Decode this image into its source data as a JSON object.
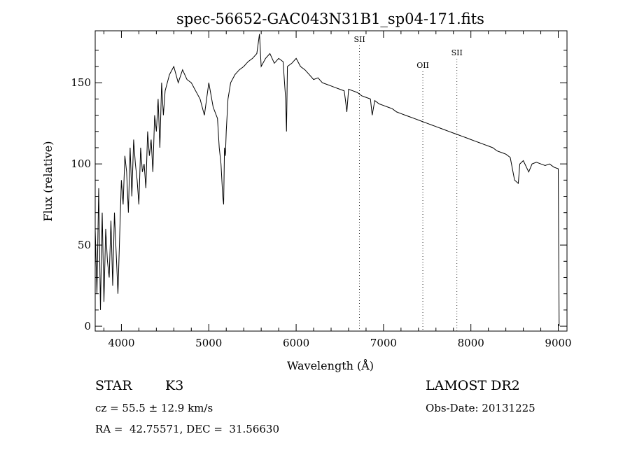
{
  "chart_data": {
    "type": "line",
    "title": "spec-56652-GAC043N31B1_sp04-171.fits",
    "xlabel": "Wavelength (Å)",
    "ylabel": "Flux (relative)",
    "xlim": [
      3700,
      9100
    ],
    "ylim": [
      -3,
      182
    ],
    "xticks": [
      4000,
      5000,
      6000,
      7000,
      8000,
      9000
    ],
    "yticks": [
      0,
      50,
      100,
      150
    ],
    "series": [
      {
        "x": [
          3700,
          3720,
          3740,
          3760,
          3780,
          3800,
          3820,
          3840,
          3860,
          3880,
          3900,
          3920,
          3940,
          3960,
          3980,
          4000,
          4020,
          4040,
          4060,
          4080,
          4100,
          4120,
          4140,
          4160,
          4180,
          4200,
          4220,
          4240,
          4260,
          4280,
          4300,
          4320,
          4340,
          4360,
          4380,
          4400,
          4420,
          4440,
          4460,
          4480,
          4500,
          4550,
          4600,
          4650,
          4700,
          4750,
          4800,
          4850,
          4900,
          4950,
          5000,
          5050,
          5100,
          5120,
          5140,
          5160,
          5170,
          5180,
          5190,
          5200,
          5220,
          5250,
          5300,
          5350,
          5400,
          5450,
          5500,
          5550,
          5580,
          5600,
          5650,
          5700,
          5750,
          5800,
          5850,
          5880,
          5890,
          5900,
          5950,
          6000,
          6050,
          6100,
          6150,
          6200,
          6250,
          6300,
          6350,
          6400,
          6450,
          6500,
          6550,
          6563,
          6580,
          6600,
          6650,
          6700,
          6750,
          6800,
          6850,
          6870,
          6900,
          6950,
          7000,
          7050,
          7100,
          7150,
          7200,
          7250,
          7300,
          7350,
          7400,
          7450,
          7500,
          7550,
          7600,
          7650,
          7700,
          7750,
          7800,
          7850,
          7900,
          7950,
          8000,
          8050,
          8100,
          8150,
          8200,
          8250,
          8300,
          8350,
          8400,
          8450,
          8500,
          8542,
          8560,
          8600,
          8662,
          8700,
          8750,
          8800,
          8850,
          8900,
          8950,
          9000,
          9005,
          9010
        ],
        "y": [
          60,
          20,
          85,
          10,
          70,
          15,
          60,
          40,
          30,
          65,
          25,
          70,
          45,
          20,
          55,
          90,
          75,
          105,
          95,
          70,
          110,
          80,
          115,
          100,
          90,
          75,
          110,
          95,
          100,
          85,
          120,
          105,
          115,
          95,
          130,
          120,
          140,
          110,
          150,
          130,
          145,
          155,
          160,
          150,
          158,
          152,
          150,
          145,
          140,
          130,
          150,
          135,
          128,
          110,
          100,
          80,
          75,
          110,
          105,
          120,
          140,
          150,
          155,
          158,
          160,
          163,
          165,
          168,
          180,
          160,
          165,
          168,
          162,
          165,
          163,
          140,
          120,
          160,
          162,
          165,
          160,
          158,
          155,
          152,
          153,
          150,
          149,
          148,
          147,
          146,
          145,
          140,
          132,
          146,
          145,
          144,
          142,
          141,
          140,
          130,
          139,
          137,
          136,
          135,
          134,
          132,
          131,
          130,
          129,
          128,
          127,
          126,
          125,
          124,
          123,
          122,
          121,
          120,
          119,
          118,
          117,
          116,
          115,
          114,
          113,
          112,
          111,
          110,
          108,
          107,
          106,
          104,
          90,
          88,
          100,
          102,
          95,
          100,
          101,
          100,
          99,
          100,
          98,
          97,
          50,
          0
        ],
        "stroke": "#000000"
      }
    ],
    "spectral_lines": [
      {
        "label": "SII",
        "x": 6725
      },
      {
        "label": "OII",
        "x": 7450
      },
      {
        "label": "SII",
        "x": 7840
      }
    ],
    "grid": false
  },
  "info": {
    "class": "STAR",
    "subclass": "K3",
    "survey": "LAMOST DR2",
    "cz": "cz = 55.5 ± 12.9 km/s",
    "obs_date": "Obs-Date: 20131225",
    "coords": "RA =  42.75571, DEC =  31.56630"
  }
}
